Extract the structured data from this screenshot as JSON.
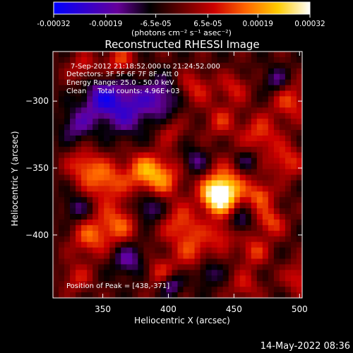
{
  "colorbar": {
    "tick_labels": [
      "-0.00032",
      "-0.00019",
      "-6.5e-05",
      "6.5e-05",
      "0.00019",
      "0.00032"
    ],
    "tick_values": [
      -0.00032,
      -0.00019,
      -6.5e-05,
      6.5e-05,
      0.00019,
      0.00032
    ],
    "units_label": "(photons cm⁻² s⁻¹ asec⁻²)",
    "colormap": [
      "#0000ff",
      "#3300cc",
      "#660099",
      "#000000",
      "#660000",
      "#cc0000",
      "#ff6600",
      "#ffcc00",
      "#ffffff"
    ]
  },
  "chart_data": {
    "type": "heatmap",
    "title": "Reconstructed RHESSI Image",
    "xlabel": "Heliocentric X (arcsec)",
    "ylabel": "Heliocentric Y (arcsec)",
    "xlim": [
      312,
      502
    ],
    "ylim": [
      -447,
      -263
    ],
    "x_ticks": [
      350,
      400,
      450,
      500
    ],
    "y_ticks": [
      -300,
      -350,
      -400
    ],
    "vmin": -0.00032,
    "vmax": 0.00032,
    "peak": [
      438,
      -371
    ],
    "annotations": [
      "7-Sep-2012 21:18:52.000 to 21:24:52.000",
      "Detectors: 3F 5F 6F 7F 8F, Att 0",
      "Energy Range: 25.0 - 50.0 keV",
      "Clean     Total counts: 4.96E+03"
    ],
    "peak_label": "Position of Peak = [438,-371]",
    "sources": [
      {
        "x": 438,
        "y": -371,
        "amp": 0.00034,
        "sigma": 9
      },
      {
        "x": 445,
        "y": -362,
        "amp": 0.00016,
        "sigma": 12
      },
      {
        "x": 395,
        "y": -357,
        "amp": 0.00018,
        "sigma": 11
      },
      {
        "x": 380,
        "y": -352,
        "amp": 0.00016,
        "sigma": 10
      },
      {
        "x": 352,
        "y": -360,
        "amp": 0.00018,
        "sigma": 11
      },
      {
        "x": 335,
        "y": -348,
        "amp": 0.00015,
        "sigma": 9
      },
      {
        "x": 362,
        "y": -392,
        "amp": 0.00017,
        "sigma": 11
      },
      {
        "x": 340,
        "y": -402,
        "amp": 0.00016,
        "sigma": 10
      },
      {
        "x": 410,
        "y": -393,
        "amp": 0.00016,
        "sigma": 11
      },
      {
        "x": 420,
        "y": -413,
        "amp": 0.00013,
        "sigma": 9
      },
      {
        "x": 395,
        "y": -428,
        "amp": 0.00013,
        "sigma": 9
      },
      {
        "x": 470,
        "y": -370,
        "amp": 0.00017,
        "sigma": 7
      },
      {
        "x": 478,
        "y": -390,
        "amp": 0.00016,
        "sigma": 8
      },
      {
        "x": 465,
        "y": -412,
        "amp": 0.00014,
        "sigma": 8
      },
      {
        "x": 440,
        "y": -400,
        "amp": 0.00013,
        "sigma": 8
      },
      {
        "x": 490,
        "y": -345,
        "amp": 0.00015,
        "sigma": 9
      },
      {
        "x": 470,
        "y": -325,
        "amp": 0.00015,
        "sigma": 10
      },
      {
        "x": 440,
        "y": -315,
        "amp": 0.00012,
        "sigma": 9
      },
      {
        "x": 420,
        "y": -290,
        "amp": 0.00013,
        "sigma": 9
      },
      {
        "x": 450,
        "y": -290,
        "amp": 0.00012,
        "sigma": 8
      },
      {
        "x": 493,
        "y": -300,
        "amp": 0.00015,
        "sigma": 10
      },
      {
        "x": 363,
        "y": -270,
        "amp": 0.00015,
        "sigma": 8
      },
      {
        "x": 335,
        "y": -275,
        "amp": 0.00011,
        "sigma": 8
      },
      {
        "x": 500,
        "y": -432,
        "amp": 0.00014,
        "sigma": 8
      },
      {
        "x": 458,
        "y": -438,
        "amp": 0.00011,
        "sigma": 8
      },
      {
        "x": 330,
        "y": -432,
        "amp": 0.00011,
        "sigma": 8
      },
      {
        "x": 402,
        "y": -323,
        "amp": 0.0001,
        "sigma": 7
      },
      {
        "x": 368,
        "y": -305,
        "amp": -0.00018,
        "sigma": 14
      },
      {
        "x": 348,
        "y": -298,
        "amp": -0.00016,
        "sigma": 10
      },
      {
        "x": 395,
        "y": -297,
        "amp": -0.00014,
        "sigma": 10
      },
      {
        "x": 330,
        "y": -318,
        "amp": -0.00013,
        "sigma": 9
      },
      {
        "x": 385,
        "y": -380,
        "amp": -0.00015,
        "sigma": 8
      },
      {
        "x": 370,
        "y": -418,
        "amp": -0.00014,
        "sigma": 9
      },
      {
        "x": 402,
        "y": -437,
        "amp": -0.00017,
        "sigma": 6
      },
      {
        "x": 420,
        "y": -345,
        "amp": -0.00012,
        "sigma": 7
      },
      {
        "x": 455,
        "y": -390,
        "amp": -0.00012,
        "sigma": 6
      },
      {
        "x": 460,
        "y": -345,
        "amp": -0.00011,
        "sigma": 6
      },
      {
        "x": 482,
        "y": -285,
        "amp": -0.00012,
        "sigma": 7
      },
      {
        "x": 330,
        "y": -380,
        "amp": -0.00011,
        "sigma": 7
      },
      {
        "x": 430,
        "y": -428,
        "amp": -0.00011,
        "sigma": 7
      }
    ]
  },
  "timestamp": "14-May-2022 08:36"
}
